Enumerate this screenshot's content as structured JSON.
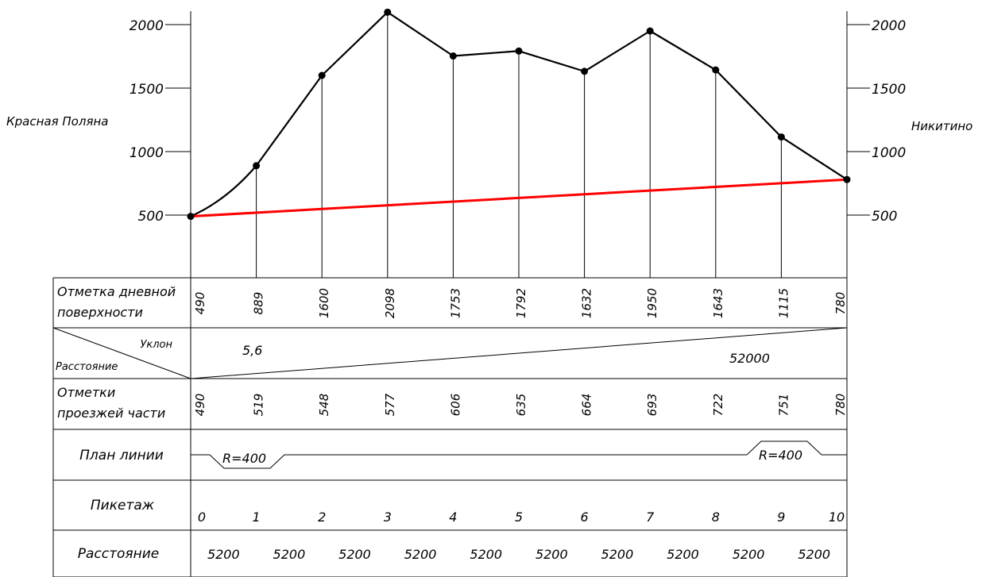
{
  "chart_data": {
    "type": "line",
    "left_station": "Красная Поляна",
    "right_station": "Никитино",
    "y_ticks": [
      500,
      1000,
      1500,
      2000
    ],
    "ylim": [
      0,
      2100
    ],
    "pickets": [
      "0",
      "1",
      "2",
      "3",
      "4",
      "5",
      "6",
      "7",
      "8",
      "9",
      "10"
    ],
    "series": [
      {
        "values": [
          490,
          889,
          1600,
          2098,
          1753,
          1792,
          1632,
          1950,
          1643,
          1115,
          780
        ]
      },
      {
        "values": [
          490,
          780
        ],
        "color": "#ff0000"
      }
    ]
  },
  "table": {
    "rows": [
      {
        "id": "ground",
        "label_lines": [
          "Отметка дневной",
          "поверхности"
        ],
        "values": [
          "490",
          "889",
          "1600",
          "2098",
          "1753",
          "1792",
          "1632",
          "1950",
          "1643",
          "1115",
          "780"
        ]
      },
      {
        "id": "slope",
        "slope_label": "Уклон",
        "distance_label": "Расстояние",
        "slope_value": "5,6",
        "distance_value": "52000"
      },
      {
        "id": "road",
        "label_lines": [
          "Отметки",
          "проезжей части"
        ],
        "values": [
          "490",
          "519",
          "548",
          "577",
          "606",
          "635",
          "664",
          "693",
          "722",
          "751",
          "780"
        ]
      },
      {
        "id": "plan",
        "label": "План линии",
        "curves": [
          "R=400",
          "R=400"
        ]
      },
      {
        "id": "pickets",
        "label": "Пикетаж",
        "values": [
          "0",
          "1",
          "2",
          "3",
          "4",
          "5",
          "6",
          "7",
          "8",
          "9",
          "10"
        ]
      },
      {
        "id": "distance",
        "label": "Расстояние",
        "values": [
          "5200",
          "5200",
          "5200",
          "5200",
          "5200",
          "5200",
          "5200",
          "5200",
          "5200",
          "5200"
        ]
      }
    ]
  },
  "colors": {
    "profile": "#000000",
    "design_line": "#ff0000"
  }
}
